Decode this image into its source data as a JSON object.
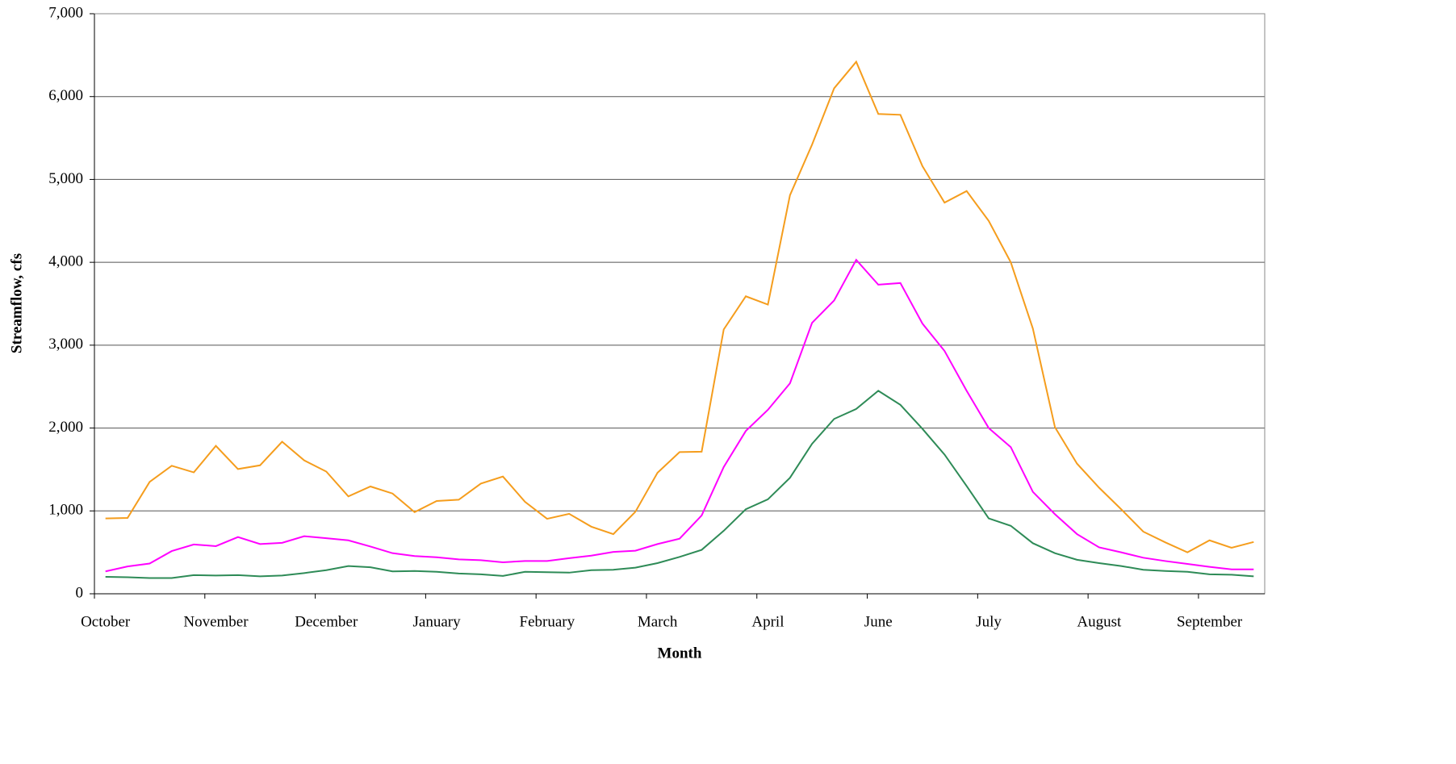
{
  "chart_data": {
    "type": "line",
    "x_label": "Month",
    "y_label": "Streamflow, cfs",
    "categories": [
      "October",
      null,
      null,
      null,
      null,
      "November",
      null,
      null,
      null,
      null,
      "December",
      null,
      null,
      null,
      null,
      "January",
      null,
      null,
      null,
      null,
      "February",
      null,
      null,
      null,
      null,
      "March",
      null,
      null,
      null,
      null,
      "April",
      null,
      null,
      null,
      null,
      "June",
      null,
      null,
      null,
      null,
      "July",
      null,
      null,
      null,
      null,
      "August",
      null,
      null,
      null,
      null,
      "September",
      null,
      null
    ],
    "series": [
      {
        "color": "#f59d1d",
        "values": [
          909,
          915,
          1350,
          1545,
          1465,
          1785,
          1505,
          1550,
          1835,
          1610,
          1475,
          1175,
          1295,
          1210,
          985,
          1120,
          1135,
          1330,
          1415,
          1110,
          905,
          965,
          810,
          720,
          990,
          1460,
          1710,
          1715,
          3190,
          3590,
          3490,
          4810,
          5420,
          6100,
          6420,
          5790,
          5780,
          5160,
          4720,
          4860,
          4500,
          4000,
          3200,
          2010,
          1570,
          1280,
          1020,
          750,
          620,
          500,
          645,
          555,
          625
        ]
      },
      {
        "color": "#ff00ff",
        "values": [
          270,
          330,
          365,
          515,
          595,
          575,
          685,
          600,
          615,
          695,
          670,
          645,
          570,
          490,
          455,
          440,
          415,
          405,
          380,
          395,
          395,
          430,
          460,
          505,
          520,
          600,
          665,
          945,
          1530,
          1965,
          2220,
          2540,
          3270,
          3540,
          4030,
          3730,
          3750,
          3260,
          2930,
          2450,
          2000,
          1770,
          1230,
          960,
          720,
          560,
          500,
          435,
          395,
          360,
          325,
          295,
          295
        ]
      },
      {
        "color": "#2e8b57",
        "values": [
          205,
          200,
          190,
          190,
          225,
          220,
          225,
          210,
          220,
          250,
          285,
          335,
          320,
          270,
          275,
          265,
          245,
          235,
          215,
          265,
          260,
          255,
          285,
          290,
          315,
          370,
          445,
          530,
          760,
          1020,
          1140,
          1400,
          1810,
          2110,
          2230,
          2450,
          2280,
          1990,
          1680,
          1300,
          910,
          820,
          610,
          490,
          410,
          370,
          335,
          290,
          275,
          265,
          235,
          230,
          210
        ]
      }
    ],
    "ylim": [
      0,
      7000
    ],
    "yticks": [
      0,
      {
        "value": 1000,
        "label": "1,000"
      },
      {
        "value": 2000,
        "label": "2,000"
      },
      {
        "value": 3000,
        "label": "3,000"
      },
      {
        "value": 4000,
        "label": "4,000"
      },
      {
        "value": 5000,
        "label": "5,000"
      },
      {
        "value": 6000,
        "label": "6,000"
      },
      {
        "value": 7000,
        "label": "7,000"
      }
    ],
    "grid": true
  }
}
